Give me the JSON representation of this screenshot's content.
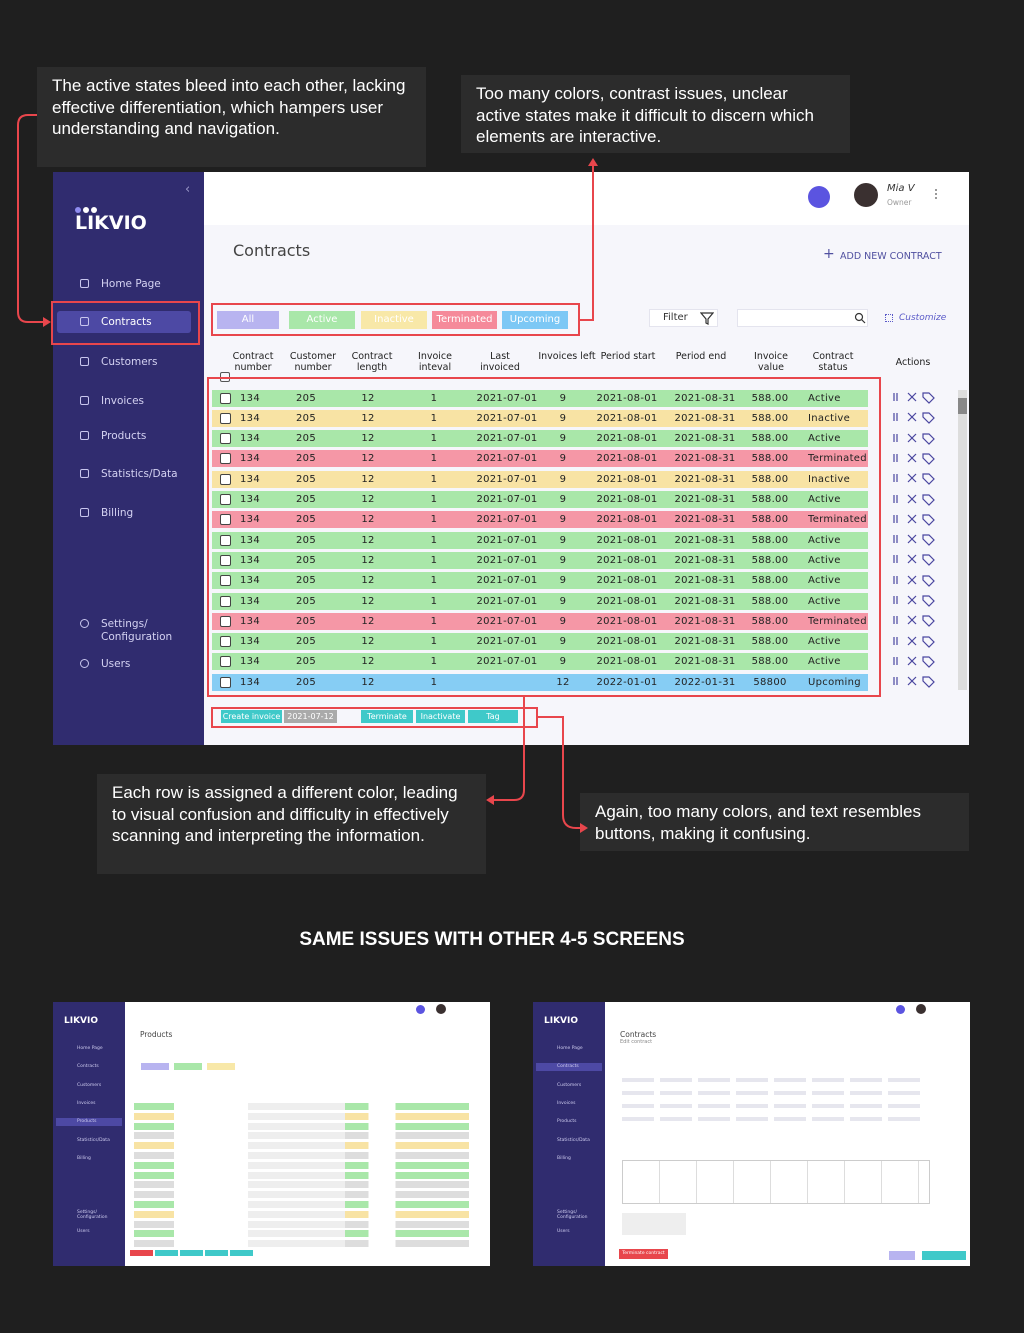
{
  "annotations": [
    "The active states bleed into each other, lacking effective differentiation, which hampers user understanding and navigation.",
    "Too many colors, contrast issues, unclear active states make it difficult to discern which elements are interactive.",
    "Each row is assigned a different color, leading to visual confusion and difficulty in effectively scanning and interpreting the information.",
    "Again, too many colors, and text resembles buttons, making it confusing."
  ],
  "section_heading": "SAME ISSUES WITH OTHER 4-5  SCREENS",
  "app": {
    "logo": "LIKVIO",
    "nav": [
      "Home Page",
      "Contracts",
      "Customers",
      "Invoices",
      "Products",
      "Statistics/Data",
      "Billing"
    ],
    "nav_bottom": [
      "Settings/ Configuration",
      "Users"
    ],
    "user": {
      "name": "Mia V",
      "role": "Owner"
    },
    "page_title": "Contracts",
    "add_button": "ADD NEW CONTRACT",
    "tabs": [
      "All",
      "Active",
      "Inactive",
      "Terminated",
      "Upcoming"
    ],
    "filter": "Filter",
    "customize": "Customize",
    "columns": [
      "Contract number",
      "Customer number",
      "Contract length",
      "Invoice inteval",
      "Last invoiced",
      "Invoices left",
      "Period start",
      "Period end",
      "Invoice value",
      "Contract status",
      "Actions"
    ],
    "rows": [
      [
        134,
        205,
        12,
        1,
        "2021-07-01",
        9,
        "2021-08-01",
        "2021-08-31",
        "588.00",
        "Active"
      ],
      [
        134,
        205,
        12,
        1,
        "2021-07-01",
        9,
        "2021-08-01",
        "2021-08-31",
        "588.00",
        "Inactive"
      ],
      [
        134,
        205,
        12,
        1,
        "2021-07-01",
        9,
        "2021-08-01",
        "2021-08-31",
        "588.00",
        "Active"
      ],
      [
        134,
        205,
        12,
        1,
        "2021-07-01",
        9,
        "2021-08-01",
        "2021-08-31",
        "588.00",
        "Terminated"
      ],
      [
        134,
        205,
        12,
        1,
        "2021-07-01",
        9,
        "2021-08-01",
        "2021-08-31",
        "588.00",
        "Inactive"
      ],
      [
        134,
        205,
        12,
        1,
        "2021-07-01",
        9,
        "2021-08-01",
        "2021-08-31",
        "588.00",
        "Active"
      ],
      [
        134,
        205,
        12,
        1,
        "2021-07-01",
        9,
        "2021-08-01",
        "2021-08-31",
        "588.00",
        "Terminated"
      ],
      [
        134,
        205,
        12,
        1,
        "2021-07-01",
        9,
        "2021-08-01",
        "2021-08-31",
        "588.00",
        "Active"
      ],
      [
        134,
        205,
        12,
        1,
        "2021-07-01",
        9,
        "2021-08-01",
        "2021-08-31",
        "588.00",
        "Active"
      ],
      [
        134,
        205,
        12,
        1,
        "2021-07-01",
        9,
        "2021-08-01",
        "2021-08-31",
        "588.00",
        "Active"
      ],
      [
        134,
        205,
        12,
        1,
        "2021-07-01",
        9,
        "2021-08-01",
        "2021-08-31",
        "588.00",
        "Active"
      ],
      [
        134,
        205,
        12,
        1,
        "2021-07-01",
        9,
        "2021-08-01",
        "2021-08-31",
        "588.00",
        "Terminated"
      ],
      [
        134,
        205,
        12,
        1,
        "2021-07-01",
        9,
        "2021-08-01",
        "2021-08-31",
        "588.00",
        "Active"
      ],
      [
        134,
        205,
        12,
        1,
        "2021-07-01",
        9,
        "2021-08-01",
        "2021-08-31",
        "588.00",
        "Active"
      ],
      [
        134,
        205,
        12,
        1,
        null,
        12,
        "2022-01-01",
        "2022-01-31",
        "58800",
        "Upcoming"
      ]
    ],
    "footer_buttons": [
      "Create invoice",
      "2021-07-12",
      "Terminate",
      "Inactivate",
      "Tag"
    ]
  },
  "thumbnails": [
    {
      "title": "Products"
    },
    {
      "title": "Contracts",
      "subtitle": "Edit contract",
      "button": "Terminate contract"
    }
  ]
}
